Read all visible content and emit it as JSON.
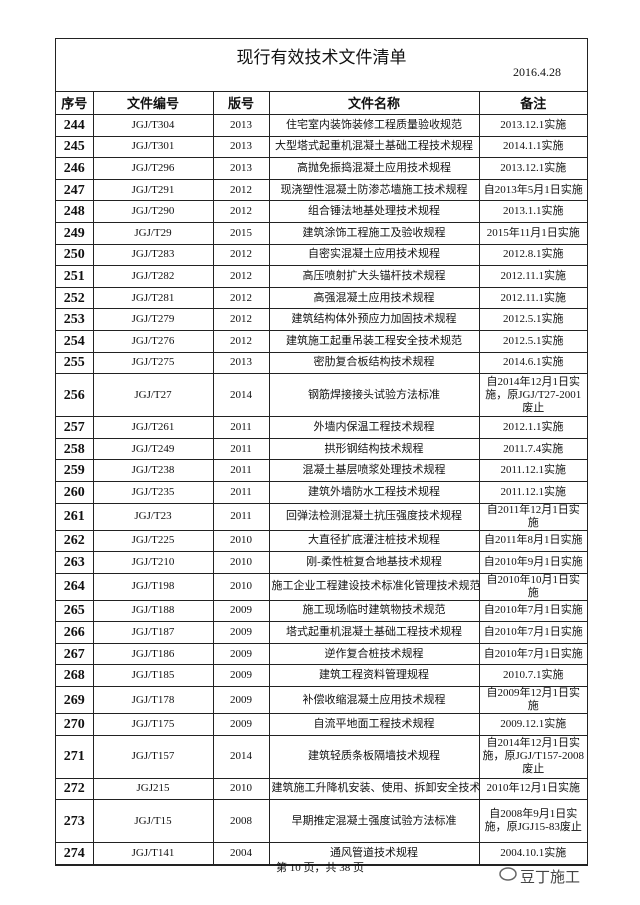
{
  "header": {
    "title": "现行有效技术文件清单",
    "date": "2016.4.28"
  },
  "table": {
    "columns": [
      "序号",
      "文件编号",
      "版号",
      "文件名称",
      "备注"
    ],
    "rows": [
      [
        "244",
        "JGJ/T304",
        "2013",
        "住宅室内装饰装修工程质量验收规范",
        "2013.12.1实施"
      ],
      [
        "245",
        "JGJ/T301",
        "2013",
        "大型塔式起重机混凝土基础工程技术规程",
        "2014.1.1实施"
      ],
      [
        "246",
        "JGJ/T296",
        "2013",
        "高抛免振捣混凝土应用技术规程",
        "2013.12.1实施"
      ],
      [
        "247",
        "JGJ/T291",
        "2012",
        "现浇塑性混凝土防渗芯墙施工技术规程",
        "自2013年5月1日实施"
      ],
      [
        "248",
        "JGJ/T290",
        "2012",
        "组合锤法地基处理技术规程",
        "2013.1.1实施"
      ],
      [
        "249",
        "JGJ/T29",
        "2015",
        "建筑涂饰工程施工及验收规程",
        "2015年11月1日实施"
      ],
      [
        "250",
        "JGJ/T283",
        "2012",
        "自密实混凝土应用技术规程",
        "2012.8.1实施"
      ],
      [
        "251",
        "JGJ/T282",
        "2012",
        "高压喷射扩大头锚杆技术规程",
        "2012.11.1实施"
      ],
      [
        "252",
        "JGJ/T281",
        "2012",
        "高强混凝土应用技术规程",
        "2012.11.1实施"
      ],
      [
        "253",
        "JGJ/T279",
        "2012",
        "建筑结构体外预应力加固技术规程",
        "2012.5.1实施"
      ],
      [
        "254",
        "JGJ/T276",
        "2012",
        "建筑施工起重吊装工程安全技术规范",
        "2012.5.1实施"
      ],
      [
        "255",
        "JGJ/T275",
        "2013",
        "密肋复合板结构技术规程",
        "2014.6.1实施"
      ],
      [
        "256",
        "JGJ/T27",
        "2014",
        "钢筋焊接接头试验方法标准",
        "自2014年12月1日实施，原JGJ/T27-2001废止"
      ],
      [
        "257",
        "JGJ/T261",
        "2011",
        "外墙内保温工程技术规程",
        "2012.1.1实施"
      ],
      [
        "258",
        "JGJ/T249",
        "2011",
        "拱形钢结构技术规程",
        "2011.7.4实施"
      ],
      [
        "259",
        "JGJ/T238",
        "2011",
        "混凝土基层喷浆处理技术规程",
        "2011.12.1实施"
      ],
      [
        "260",
        "JGJ/T235",
        "2011",
        "建筑外墙防水工程技术规程",
        "2011.12.1实施"
      ],
      [
        "261",
        "JGJ/T23",
        "2011",
        "回弹法检测混凝土抗压强度技术规程",
        "自2011年12月1日实施"
      ],
      [
        "262",
        "JGJ/T225",
        "2010",
        "大直径扩底灌注桩技术规程",
        "自2011年8月1日实施"
      ],
      [
        "263",
        "JGJ/T210",
        "2010",
        "刚-柔性桩复合地基技术规程",
        "自2010年9月1日实施"
      ],
      [
        "264",
        "JGJ/T198",
        "2010",
        "施工企业工程建设技术标准化管理技术规范",
        "自2010年10月1日实施"
      ],
      [
        "265",
        "JGJ/T188",
        "2009",
        "施工现场临时建筑物技术规范",
        "自2010年7月1日实施"
      ],
      [
        "266",
        "JGJ/T187",
        "2009",
        "塔式起重机混凝土基础工程技术规程",
        "自2010年7月1日实施"
      ],
      [
        "267",
        "JGJ/T186",
        "2009",
        "逆作复合桩技术规程",
        "自2010年7月1日实施"
      ],
      [
        "268",
        "JGJ/T185",
        "2009",
        "建筑工程资料管理规程",
        "2010.7.1实施"
      ],
      [
        "269",
        "JGJ/T178",
        "2009",
        "补偿收缩混凝土应用技术规程",
        "自2009年12月1日实施"
      ],
      [
        "270",
        "JGJ/T175",
        "2009",
        "自流平地面工程技术规程",
        "2009.12.1实施"
      ],
      [
        "271",
        "JGJ/T157",
        "2014",
        "建筑轻质条板隔墙技术规程",
        "自2014年12月1日实施，原JGJ/T157-2008废止"
      ],
      [
        "272",
        "JGJ215",
        "2010",
        "建筑施工升降机安装、使用、拆卸安全技术规程",
        "2010年12月1日实施"
      ],
      [
        "273",
        "JGJ/T15",
        "2008",
        "早期推定混凝土强度试验方法标准",
        "自2008年9月1日实施，原JGJ15-83废止"
      ],
      [
        "274",
        "JGJ/T141",
        "2004",
        "通风管道技术规程",
        "2004.10.1实施"
      ]
    ]
  },
  "footer": {
    "page": "第 10 页，共 38 页",
    "watermark": "豆丁施工"
  }
}
